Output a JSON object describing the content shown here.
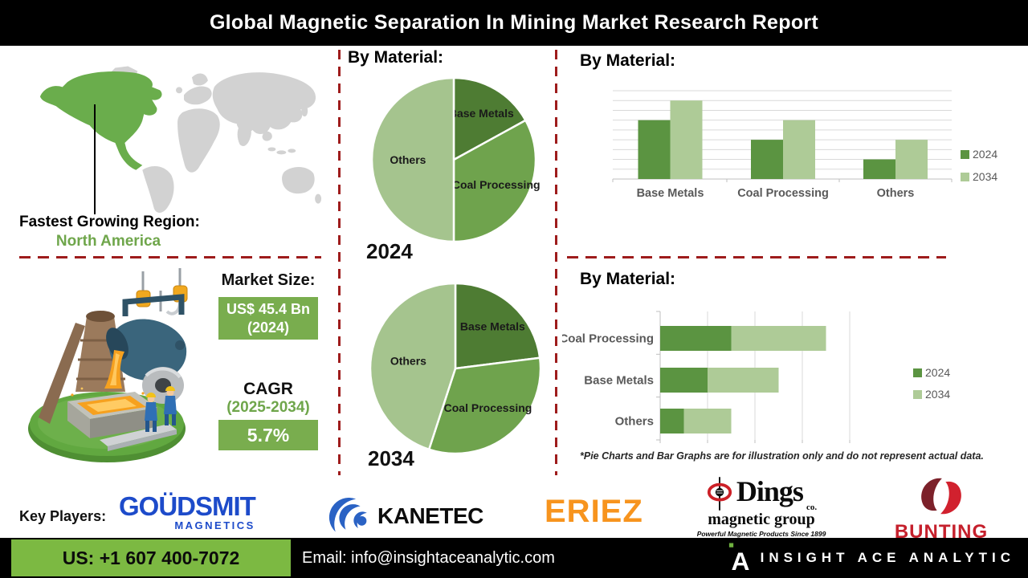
{
  "header": {
    "title": "Global Magnetic Separation In Mining Market Research Report"
  },
  "map": {
    "label": "Fastest Growing Region:",
    "region": "North America"
  },
  "market": {
    "size_label": "Market Size:",
    "size_value": "US$ 45.4 Bn",
    "size_year": "(2024)",
    "cagr_label": "CAGR",
    "cagr_period": "(2025-2034)",
    "cagr_value": "5.7%"
  },
  "chart_data": [
    {
      "type": "pie",
      "title": "By Material:",
      "year": "2024",
      "slices": [
        {
          "label": "Base Metals",
          "value": 17
        },
        {
          "label": "Coal Processing",
          "value": 33
        },
        {
          "label": "Others",
          "value": 50
        }
      ],
      "note": "values are percent of circle; illustrative only"
    },
    {
      "type": "pie",
      "year": "2034",
      "slices": [
        {
          "label": "Base Metals",
          "value": 23
        },
        {
          "label": "Coal Processing",
          "value": 32
        },
        {
          "label": "Others",
          "value": 45
        }
      ],
      "note": "values are percent of circle; illustrative only"
    },
    {
      "type": "bar",
      "title": "By Material:",
      "categories": [
        "Base Metals",
        "Coal Processing",
        "Others"
      ],
      "series": [
        {
          "name": "2024",
          "values": [
            6,
            4,
            2
          ]
        },
        {
          "name": "2034",
          "values": [
            8,
            6,
            4
          ]
        }
      ],
      "ylim": [
        0,
        9
      ],
      "grid": true,
      "legend_position": "right",
      "note": "no numeric axis labels shown; illustrative only"
    },
    {
      "type": "bar-horizontal-stacked",
      "title": "By Material:",
      "categories": [
        "Coal Processing",
        "Base Metals",
        "Others"
      ],
      "series": [
        {
          "name": "2024",
          "values": [
            1.5,
            1,
            0.5
          ]
        },
        {
          "name": "2034",
          "values": [
            2,
            1.5,
            1
          ]
        }
      ],
      "xlim": [
        0,
        4
      ],
      "grid": true,
      "legend_position": "right",
      "note": "no numeric axis labels shown; illustrative only"
    }
  ],
  "disclaimer": "*Pie Charts and Bar Graphs are for illustration only and do not represent actual data.",
  "key_players": {
    "label": "Key Players:",
    "goudsmit": {
      "name": "GOÜDSMIT",
      "sub": "MAGNETICS"
    },
    "kanetec": {
      "name": "KANETEC"
    },
    "eriez": {
      "name": "ERIEZ"
    },
    "dings": {
      "name": "Dings",
      "co": "co.",
      "sub": "magnetic group",
      "tagline": "Powerful Magnetic Products Since 1899"
    },
    "bunting": {
      "name": "BUNTING"
    }
  },
  "footer": {
    "phone": "US: +1 607 400-7072",
    "email": "Email: info@insightaceanalytic.com",
    "brand": "INSIGHT ACE ANALYTIC"
  },
  "colors": {
    "pie_dark": "#4e7c33",
    "pie_mid": "#6fa34d",
    "pie_light": "#a5c48e",
    "bar_2024": "#5b9441",
    "bar_2034": "#aecb97",
    "green_text": "#6fa64b",
    "green_box": "#79ad4e",
    "green_footer": "#7cb942",
    "red_dash": "#9e1c1c",
    "map_green": "#6aad4c",
    "map_gray": "#d2d2d2",
    "grid_gray": "#d9d9d9",
    "axis_gray": "#bfbfbf",
    "label_gray": "#595959",
    "goudsmit_blue": "#1d4bca",
    "kanetec_blue": "#2a62c4",
    "eriez_orange": "#f7941e",
    "bunting_red": "#c5202c",
    "bunting_dark": "#7c212a",
    "dings_red": "#cc2027",
    "brand_green_dot": "#6fb13f"
  }
}
